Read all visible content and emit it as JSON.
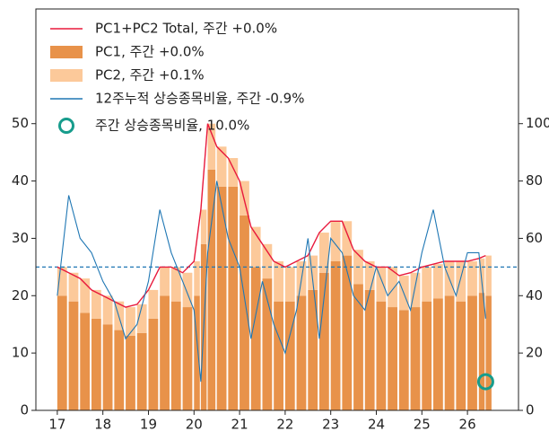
{
  "chart_data": {
    "type": "stacked-bar-line",
    "x": [
      17,
      17.25,
      17.5,
      17.75,
      18,
      18.25,
      18.5,
      18.75,
      19,
      19.25,
      19.5,
      19.75,
      20,
      20.15,
      20.3,
      20.5,
      20.75,
      21,
      21.25,
      21.5,
      21.75,
      22,
      22.25,
      22.5,
      22.75,
      23,
      23.25,
      23.5,
      23.75,
      24,
      24.25,
      24.5,
      24.75,
      25,
      25.25,
      25.5,
      25.75,
      26,
      26.25,
      26.4
    ],
    "series": [
      {
        "name": "PC1+PC2 Total, 주간 +0.0%",
        "kind": "line",
        "color": "#e8193c",
        "values": [
          25,
          24,
          23,
          21,
          20,
          19,
          18,
          18.5,
          21,
          25,
          25,
          24,
          26,
          35,
          50,
          46,
          44,
          40,
          32,
          29,
          26,
          25,
          26,
          27,
          31,
          33,
          33,
          28,
          26,
          25,
          25,
          23.5,
          24,
          25,
          25.5,
          26,
          26,
          26,
          26.5,
          27
        ]
      },
      {
        "name": "PC1, 주간 +0.0%",
        "kind": "bar",
        "color": "#e8924a",
        "values": [
          20,
          19,
          17,
          16,
          15,
          14,
          13,
          13.5,
          16,
          20,
          19,
          18,
          20,
          29,
          42,
          39,
          39,
          34,
          25,
          23,
          19,
          19,
          20,
          21,
          24,
          26,
          27,
          22,
          21,
          19,
          18,
          17.5,
          18,
          19,
          19.5,
          20,
          19,
          20,
          20.5,
          20
        ]
      },
      {
        "name": "PC2, 주간 +0.1%",
        "kind": "bar",
        "color": "#fcc99a",
        "values": [
          5,
          5,
          6,
          5,
          5,
          5,
          5,
          5,
          5,
          5,
          6,
          6,
          6,
          6,
          8,
          7,
          5,
          6,
          7,
          6,
          7,
          6,
          6,
          6,
          7,
          7,
          6,
          6,
          5,
          6,
          7,
          6,
          6,
          6,
          6,
          6,
          7,
          6,
          6,
          7
        ]
      },
      {
        "name": "12주누적 상승종목비율, 주간 -0.9%",
        "kind": "line",
        "axis": "y2",
        "color": "#1f77b4",
        "values": [
          40,
          75,
          60,
          55,
          45,
          38,
          25,
          30,
          45,
          70,
          55,
          45,
          35,
          10,
          55,
          80,
          60,
          50,
          25,
          45,
          30,
          20,
          35,
          60,
          25,
          60,
          55,
          40,
          35,
          50,
          40,
          45,
          35,
          55,
          70,
          50,
          40,
          55,
          55,
          32
        ]
      }
    ],
    "marker": {
      "name": "주간 상승종목비율, 10.0%",
      "x": 26.4,
      "value": 10,
      "axis": "y2",
      "color": "#179c8c"
    },
    "hline": {
      "value": 50,
      "axis": "y2",
      "color": "#1f77b4"
    },
    "xlim": [
      16.53,
      27.12
    ],
    "xticks": [
      17,
      18,
      19,
      20,
      21,
      22,
      23,
      24,
      25,
      26
    ],
    "ylim": [
      0,
      70
    ],
    "yticks": [
      0,
      10,
      20,
      30,
      40,
      50
    ],
    "y2lim": [
      0,
      140
    ],
    "y2ticks": [
      0,
      20,
      40,
      60,
      80,
      100
    ],
    "legend": "upper left"
  }
}
